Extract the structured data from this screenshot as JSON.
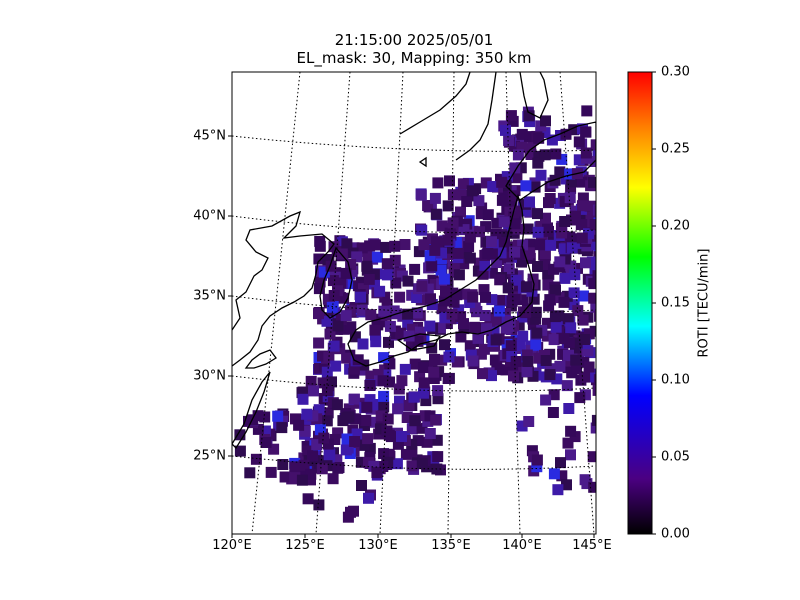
{
  "title_line1": "21:15:00 2025/05/01",
  "title_line2": "EL_mask: 30, Mapping: 350 km",
  "lat_labels": [
    "45°N",
    "40°N",
    "35°N",
    "30°N",
    "25°N"
  ],
  "lat_values": [
    45,
    40,
    35,
    30,
    25
  ],
  "lon_labels": [
    "120°E",
    "125°E",
    "130°E",
    "135°E",
    "140°E",
    "145°E"
  ],
  "lon_values": [
    120,
    125,
    130,
    135,
    140,
    145
  ],
  "colorbar": {
    "label": "ROTI [TECU/min]",
    "ticks": [
      "0.30",
      "0.25",
      "0.20",
      "0.15",
      "0.10",
      "0.05",
      "0.00"
    ],
    "tick_values": [
      0.3,
      0.25,
      0.2,
      0.15,
      0.1,
      0.05,
      0.0
    ],
    "range": [
      0.0,
      0.3
    ],
    "colormap": [
      "#000000",
      "#4b0082",
      "#0000ff",
      "#00ffff",
      "#00ff00",
      "#ffff00",
      "#ff8000",
      "#ff0000"
    ]
  },
  "map": {
    "lon_range": [
      120,
      145
    ],
    "lat_range": [
      20,
      49
    ],
    "land_outline_color": "#000000",
    "gridline_style": "dotted"
  },
  "roti_field": {
    "dominant_value": 0.03,
    "dominant_color": "#3a0a5e",
    "secondary_color": "#3d1aa8",
    "peak_value": 0.05
  }
}
